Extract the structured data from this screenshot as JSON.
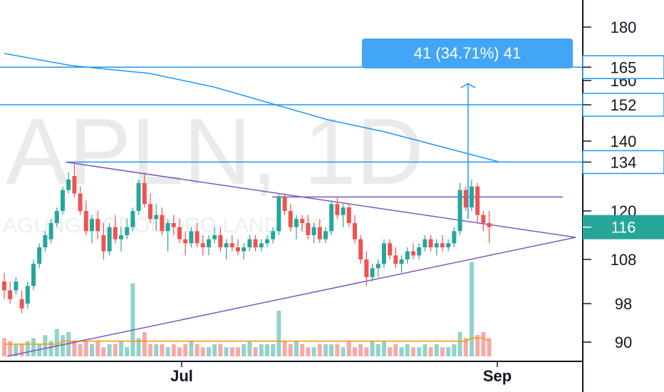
{
  "chart_data": {
    "type": "candlestick",
    "symbol": "APLN, 1D",
    "company": "AGUNG PODOMORO LAND TBK.",
    "y_axis": {
      "ticks": [
        180,
        160,
        140,
        120,
        108,
        98,
        90
      ],
      "tick_labels": [
        "180",
        "160",
        "140",
        "120",
        "108",
        "98",
        "90"
      ]
    },
    "x_axis": {
      "labels": [
        "Jul",
        "Sep"
      ]
    },
    "last_price": 116,
    "horizontal_levels": [
      {
        "value": 165,
        "label": "165",
        "color": "#2196f3"
      },
      {
        "value": 152,
        "label": "152",
        "color": "#2196f3"
      },
      {
        "value": 134,
        "label": "134",
        "color": "#2196f3"
      }
    ],
    "projection": {
      "text": "41 (34.71%) 41",
      "from": 118,
      "to": 159
    },
    "pattern": "symmetrical triangle",
    "colors": {
      "up": "#26a69a",
      "down": "#ef5350",
      "level": "#2196f3",
      "trendline": "#7e57c2",
      "volume_ma": "#ff9800",
      "price_badge": "#26a69a"
    },
    "candles": [
      [
        103,
        105,
        99,
        101
      ],
      [
        101,
        103,
        98,
        99
      ],
      [
        101,
        104,
        100,
        103
      ],
      [
        99,
        101,
        96,
        97
      ],
      [
        98,
        103,
        97,
        102
      ],
      [
        102,
        108,
        101,
        107
      ],
      [
        107,
        112,
        106,
        111
      ],
      [
        111,
        115,
        110,
        114
      ],
      [
        113,
        118,
        112,
        117
      ],
      [
        117,
        121,
        116,
        120
      ],
      [
        120,
        127,
        119,
        126
      ],
      [
        126,
        131,
        125,
        129
      ],
      [
        130,
        134,
        124,
        125
      ],
      [
        125,
        127,
        119,
        120
      ],
      [
        120,
        123,
        114,
        115
      ],
      [
        115,
        119,
        112,
        118
      ],
      [
        118,
        120,
        113,
        115
      ],
      [
        114,
        117,
        108,
        110
      ],
      [
        110,
        117,
        109,
        116
      ],
      [
        116,
        119,
        112,
        113
      ],
      [
        113,
        116,
        110,
        114
      ],
      [
        114,
        118,
        113,
        116
      ],
      [
        116,
        121,
        115,
        120
      ],
      [
        120,
        129,
        119,
        128
      ],
      [
        128,
        131,
        121,
        122
      ],
      [
        122,
        125,
        117,
        118
      ],
      [
        118,
        122,
        115,
        119
      ],
      [
        119,
        121,
        114,
        115
      ],
      [
        115,
        118,
        110,
        117
      ],
      [
        117,
        119,
        114,
        116
      ],
      [
        116,
        118,
        112,
        113
      ],
      [
        113,
        115,
        109,
        112
      ],
      [
        112,
        116,
        111,
        115
      ],
      [
        115,
        117,
        111,
        112
      ],
      [
        112,
        114,
        109,
        111
      ],
      [
        111,
        114,
        109,
        113
      ],
      [
        113,
        116,
        112,
        114
      ],
      [
        114,
        116,
        110,
        111
      ],
      [
        111,
        113,
        108,
        112
      ],
      [
        112,
        114,
        110,
        111
      ],
      [
        111,
        113,
        109,
        110
      ],
      [
        110,
        112,
        108,
        111
      ],
      [
        111,
        114,
        110,
        113
      ],
      [
        113,
        114,
        110,
        111
      ],
      [
        111,
        113,
        110,
        112
      ],
      [
        112,
        114,
        111,
        113
      ],
      [
        113,
        116,
        112,
        115
      ],
      [
        115,
        125,
        114,
        124
      ],
      [
        124,
        125,
        119,
        120
      ],
      [
        120,
        122,
        115,
        116
      ],
      [
        116,
        119,
        113,
        118
      ],
      [
        118,
        119,
        115,
        117
      ],
      [
        117,
        119,
        113,
        114
      ],
      [
        114,
        117,
        112,
        116
      ],
      [
        116,
        118,
        112,
        113
      ],
      [
        113,
        116,
        112,
        115
      ],
      [
        115,
        123,
        114,
        122
      ],
      [
        122,
        124,
        118,
        119
      ],
      [
        119,
        122,
        116,
        121
      ],
      [
        121,
        122,
        116,
        117
      ],
      [
        117,
        119,
        112,
        113
      ],
      [
        113,
        114,
        107,
        108
      ],
      [
        108,
        110,
        102,
        104
      ],
      [
        104,
        107,
        103,
        106
      ],
      [
        106,
        108,
        104,
        107
      ],
      [
        107,
        113,
        106,
        112
      ],
      [
        112,
        113,
        108,
        109
      ],
      [
        109,
        111,
        106,
        107
      ],
      [
        107,
        109,
        105,
        108
      ],
      [
        108,
        111,
        107,
        110
      ],
      [
        110,
        112,
        108,
        109
      ],
      [
        109,
        112,
        108,
        111
      ],
      [
        111,
        114,
        110,
        113
      ],
      [
        113,
        114,
        110,
        111
      ],
      [
        111,
        113,
        109,
        112
      ],
      [
        112,
        114,
        110,
        111
      ],
      [
        111,
        113,
        110,
        112
      ],
      [
        112,
        116,
        111,
        115
      ],
      [
        115,
        128,
        114,
        126
      ],
      [
        126,
        127,
        120,
        121
      ],
      [
        121,
        129,
        120,
        127
      ],
      [
        127,
        128,
        117,
        119
      ],
      [
        119,
        120,
        115,
        117
      ],
      [
        117,
        120,
        112,
        116
      ]
    ],
    "volume_max": 30,
    "volumes": [
      6,
      5,
      4,
      4,
      5,
      6,
      4,
      7,
      5,
      9,
      7,
      8,
      5,
      4,
      5,
      4,
      5,
      3,
      4,
      4,
      5,
      3,
      24,
      6,
      8,
      4,
      4,
      4,
      3,
      4,
      3,
      4,
      5,
      4,
      3,
      3,
      4,
      4,
      3,
      3,
      3,
      4,
      5,
      3,
      4,
      4,
      4,
      15,
      5,
      4,
      5,
      4,
      3,
      3,
      4,
      4,
      4,
      4,
      3,
      5,
      3,
      4,
      3,
      5,
      4,
      5,
      3,
      4,
      3,
      4,
      3,
      3,
      4,
      3,
      4,
      3,
      3,
      4,
      8,
      6,
      31,
      7,
      8,
      6
    ],
    "volume_ma": [
      4,
      4,
      4,
      4,
      4,
      4,
      4,
      4,
      4,
      4,
      5,
      5,
      5,
      5,
      5,
      5,
      5,
      5,
      5,
      5,
      5,
      5,
      5,
      5,
      5,
      5,
      5,
      5,
      5,
      5,
      5,
      5,
      5,
      5,
      5,
      5,
      5,
      5,
      5,
      5,
      5,
      5,
      5,
      5,
      5,
      5,
      5,
      5,
      5,
      5,
      5,
      5,
      5,
      5,
      5,
      5,
      5,
      5,
      5,
      5,
      5,
      5,
      5,
      5,
      5,
      5,
      5,
      5,
      5,
      5,
      5,
      5,
      5,
      5,
      5,
      5,
      5,
      5,
      5,
      5,
      6,
      6,
      6,
      5
    ]
  }
}
